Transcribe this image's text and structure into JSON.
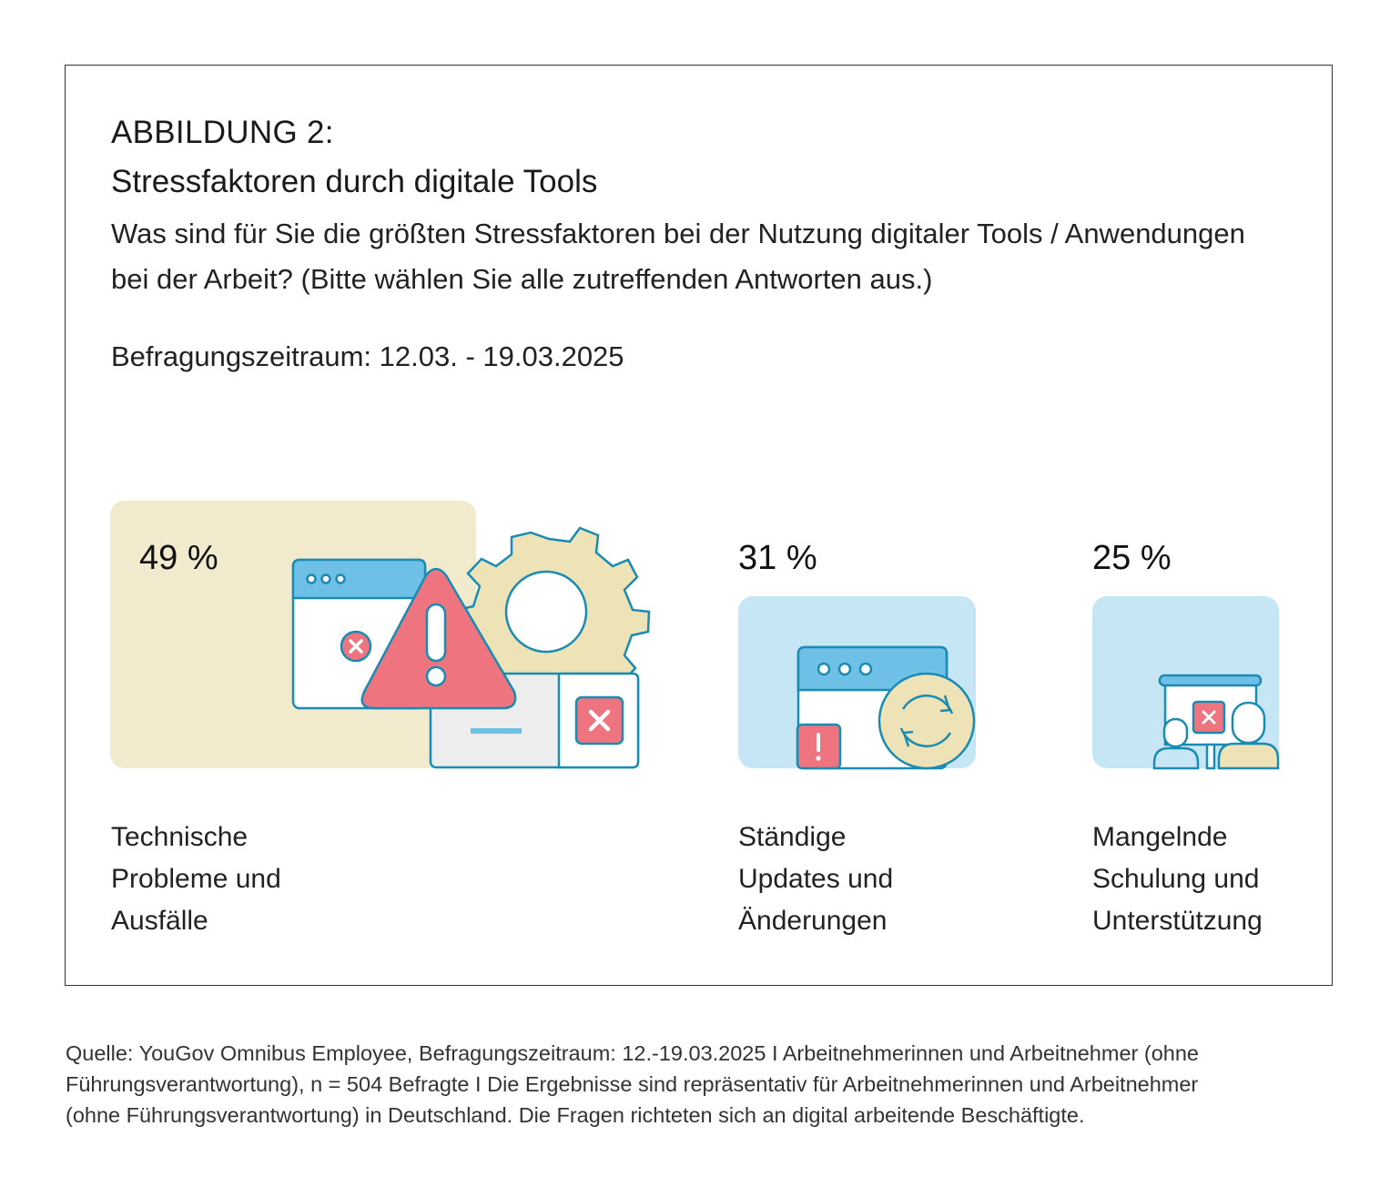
{
  "header": {
    "label": "ABBILDUNG 2:",
    "title": "Stressfaktoren durch digitale Tools",
    "question": "Was sind für Sie die größten Stressfaktoren bei der Nutzung digitaler Tools / Anwendungen bei der Arbeit? (Bitte wählen Sie alle zutreffenden Antworten aus.)",
    "period": "Befragungszeitraum: 12.03. - 19.03.2025"
  },
  "chart_data": {
    "type": "bar",
    "unit": "%",
    "categories": [
      "Technische Probleme und Ausfälle",
      "Ständige Updates und Änderungen",
      "Mangelnde Schulung und Unterstützung"
    ],
    "values": [
      49,
      31,
      25
    ],
    "value_labels": [
      "49 %",
      "31 %",
      "25 %"
    ],
    "category_lines": [
      [
        "Technische",
        "Probleme und",
        "Ausfälle"
      ],
      [
        "Ständige",
        "Updates und",
        "Änderungen"
      ],
      [
        "Mangelnde",
        "Schulung und",
        "Unterstützung"
      ]
    ]
  },
  "colors": {
    "panel_1": "#f2eacc",
    "panel_2": "#c7e6f5",
    "panel_3": "#c7e6f5",
    "outline": "#1a8bb3",
    "window_bar": "#6fc0e6",
    "alert_red": "#ee7580",
    "gear_beige": "#ede3b7"
  },
  "icons": [
    "error-window-icon",
    "warning-triangle-icon",
    "gear-icon",
    "error-dialog-icon",
    "update-window-icon",
    "refresh-icon",
    "exclamation-badge-icon",
    "training-presentation-icon",
    "person-icon"
  ],
  "footer": {
    "source_lines": [
      "Quelle: YouGov Omnibus Employee, Befragungszeitraum: 12.-19.03.2025 I Arbeitnehmerinnen und Arbeitnehmer (ohne",
      "Führungsverantwortung), n = 504 Befragte I Die Ergebnisse sind repräsentativ für Arbeitnehmerinnen und Arbeitnehmer",
      "(ohne Führungsverantwortung) in Deutschland. Die Fragen richteten sich an digital arbeitende Beschäftigte."
    ]
  }
}
